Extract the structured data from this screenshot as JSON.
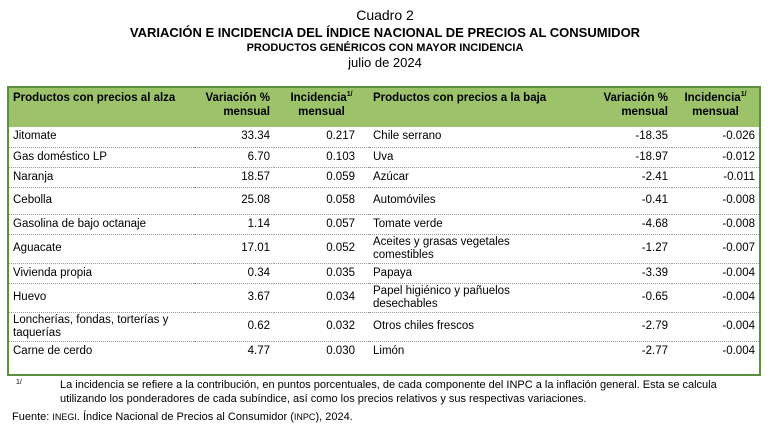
{
  "header": {
    "label": "Cuadro 2",
    "title": "VARIACIÓN E INCIDENCIA DEL ÍNDICE NACIONAL DE PRECIOS AL CONSUMIDOR",
    "subtitle": "PRODUCTOS GENÉRICOS CON MAYOR INCIDENCIA",
    "period": "julio de 2024"
  },
  "columns": {
    "up_product": "Productos con precios al alza",
    "up_variation": "Variación % mensual",
    "up_incidence": "Incidencia",
    "up_incidence_sup": "1/",
    "up_incidence_sub": "mensual",
    "down_product": "Productos con precios a la baja",
    "down_variation": "Variación % mensual",
    "down_incidence": "Incidencia",
    "down_incidence_sup": "1/",
    "down_incidence_sub": "mensual"
  },
  "rows": [
    {
      "up_product": "Jitomate",
      "up_var": "33.34",
      "up_inc": "0.217",
      "down_product": "Chile serrano",
      "down_var": "-18.35",
      "down_inc": "-0.026"
    },
    {
      "up_product": "Gas doméstico LP",
      "up_var": "6.70",
      "up_inc": "0.103",
      "down_product": "Uva",
      "down_var": "-18.97",
      "down_inc": "-0.012"
    },
    {
      "up_product": "Naranja",
      "up_var": "18.57",
      "up_inc": "0.059",
      "down_product": "Azúcar",
      "down_var": "-2.41",
      "down_inc": "-0.011"
    },
    {
      "up_product": "Cebolla",
      "up_var": "25.08",
      "up_inc": "0.058",
      "down_product": "Automóviles",
      "down_var": "-0.41",
      "down_inc": "-0.008"
    },
    {
      "up_product": "Gasolina de bajo octanaje",
      "up_var": "1.14",
      "up_inc": "0.057",
      "down_product": "Tomate verde",
      "down_var": "-4.68",
      "down_inc": "-0.008"
    },
    {
      "up_product": "Aguacate",
      "up_var": "17.01",
      "up_inc": "0.052",
      "down_product": "Aceites y grasas vegetales comestibles",
      "down_var": "-1.27",
      "down_inc": "-0.007"
    },
    {
      "up_product": "Vivienda propia",
      "up_var": "0.34",
      "up_inc": "0.035",
      "down_product": "Papaya",
      "down_var": "-3.39",
      "down_inc": "-0.004"
    },
    {
      "up_product": "Huevo",
      "up_var": "3.67",
      "up_inc": "0.034",
      "down_product": "Papel higiénico y pañuelos desechables",
      "down_var": "-0.65",
      "down_inc": "-0.004"
    },
    {
      "up_product": "Loncherías, fondas, torterías y taquerías",
      "up_var": "0.62",
      "up_inc": "0.032",
      "down_product": "Otros chiles frescos",
      "down_var": "-2.79",
      "down_inc": "-0.004"
    },
    {
      "up_product": "Carne de cerdo",
      "up_var": "4.77",
      "up_inc": "0.030",
      "down_product": "Limón",
      "down_var": "-2.77",
      "down_inc": "-0.004"
    }
  ],
  "footnote": {
    "mark": "1/",
    "text": "La incidencia se refiere a la contribución, en puntos porcentuales, de cada componente del INPC a la inflación general. Esta se calcula utilizando los ponderadores de cada subíndice, así como los precios relativos y sus respectivas variaciones."
  },
  "source": {
    "prefix": "Fuente: ",
    "org": "INEGI",
    "middle": ". Índice Nacional de Precios al Consumidor (",
    "abbr": "INPC",
    "end": "), 2024."
  }
}
